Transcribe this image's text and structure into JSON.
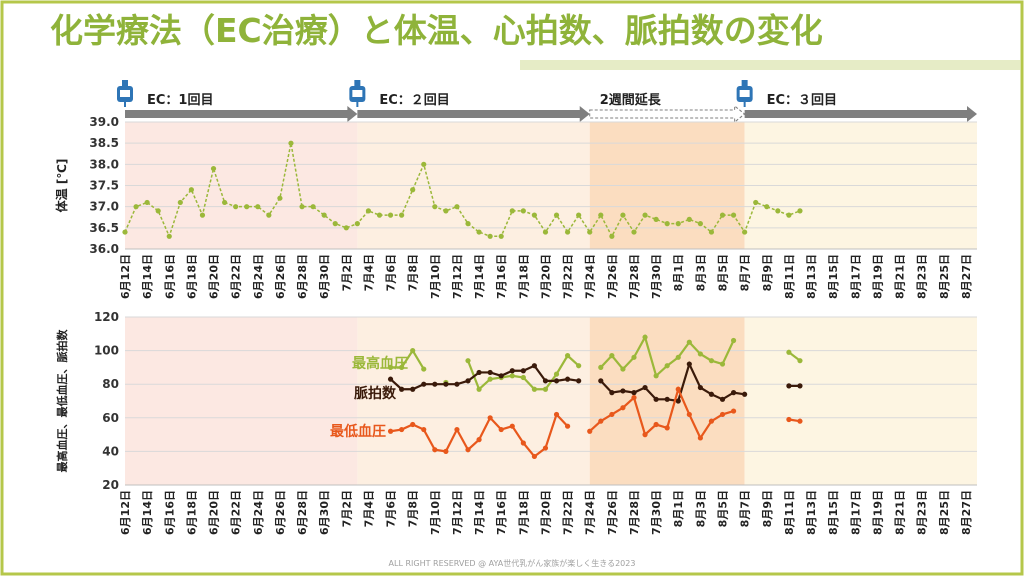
{
  "title": "化学療法（EC治療）と体温、心拍数、脈拍数の変化",
  "footer": "ALL RIGHT RESERVED @ AYA世代乳がん家族が楽しく生きる2023",
  "colors": {
    "title": "#8fb33a",
    "frame": "#b5c74a",
    "temp": "#9bb83a",
    "systolic": "#9bb83a",
    "pulse": "#3a1a0a",
    "diastolic": "#e8581c",
    "arrow": "#7f7f7f",
    "phase1_bg": "#fce8e2",
    "phase2_bg": "#fdefe1",
    "ext_bg": "#fbddc0",
    "phase3_bg": "#fdf5e2",
    "grid": "#d9d9d9",
    "drip_icon": "#2e75b6"
  },
  "phases": [
    {
      "label": "EC：1回目",
      "start": "6月12日",
      "end": "7月3日",
      "style": "solid",
      "icon": "iv-drip-icon"
    },
    {
      "label": "EC：２回目",
      "start": "7月3日",
      "end": "7月24日",
      "style": "solid",
      "icon": "iv-drip-icon"
    },
    {
      "label": "2週間延長",
      "start": "7月24日",
      "end": "8月7日",
      "style": "dashed",
      "icon": ""
    },
    {
      "label": "EC：３回目",
      "start": "8月7日",
      "end": "8月28日",
      "style": "solid",
      "icon": "iv-drip-icon"
    }
  ],
  "chart_data": [
    {
      "type": "line",
      "title": "",
      "ylabel": "体温 [℃]",
      "xlabel": "",
      "ylim": [
        36.0,
        39.0
      ],
      "yticks": [
        "36.0",
        "36.5",
        "37.0",
        "37.5",
        "38.0",
        "38.5",
        "39.0"
      ],
      "grid": true,
      "line_style": "dashed",
      "x_start": "6月12日",
      "x_end": "8月28日",
      "x_ticks": [
        "6月12日",
        "6月14日",
        "6月16日",
        "6月18日",
        "6月20日",
        "6月22日",
        "6月24日",
        "6月26日",
        "6月28日",
        "6月30日",
        "7月2日",
        "7月4日",
        "7月6日",
        "7月8日",
        "7月10日",
        "7月12日",
        "7月14日",
        "7月16日",
        "7月18日",
        "7月20日",
        "7月22日",
        "7月24日",
        "7月26日",
        "7月28日",
        "7月30日",
        "8月1日",
        "8月3日",
        "8月5日",
        "8月7日",
        "8月9日",
        "8月11日",
        "8月13日",
        "8月15日",
        "8月17日",
        "8月19日",
        "8月21日",
        "8月23日",
        "8月25日",
        "8月27日"
      ],
      "series": [
        {
          "key": "temp",
          "x": [
            "6月12日",
            "6月13日",
            "6月14日",
            "6月15日",
            "6月16日",
            "6月17日",
            "6月18日",
            "6月19日",
            "6月20日",
            "6月21日",
            "6月22日",
            "6月23日",
            "6月24日",
            "6月25日",
            "6月26日",
            "6月27日",
            "6月28日",
            "6月29日",
            "6月30日",
            "7月1日",
            "7月2日",
            "7月3日",
            "7月4日",
            "7月5日",
            "7月6日",
            "7月7日",
            "7月8日",
            "7月9日",
            "7月10日",
            "7月11日",
            "7月12日",
            "7月13日",
            "7月14日",
            "7月15日",
            "7月16日",
            "7月17日",
            "7月18日",
            "7月19日",
            "7月20日",
            "7月21日",
            "7月22日",
            "7月23日",
            "7月24日",
            "7月25日",
            "7月26日",
            "7月27日",
            "7月28日",
            "7月29日",
            "7月30日",
            "7月31日",
            "8月1日",
            "8月2日",
            "8月3日",
            "8月4日",
            "8月5日",
            "8月6日",
            "8月7日",
            "8月8日",
            "8月9日",
            "8月10日",
            "8月11日",
            "8月12日"
          ],
          "values": [
            36.4,
            37.0,
            37.1,
            36.9,
            36.3,
            37.1,
            37.4,
            36.8,
            37.9,
            37.1,
            37.0,
            37.0,
            37.0,
            36.8,
            37.2,
            38.5,
            37.0,
            37.0,
            36.8,
            36.6,
            36.5,
            36.6,
            36.9,
            36.8,
            36.8,
            36.8,
            37.4,
            38.0,
            37.0,
            36.9,
            37.0,
            36.6,
            36.4,
            36.3,
            36.3,
            36.9,
            36.9,
            36.8,
            36.4,
            36.8,
            36.4,
            36.8,
            36.4,
            36.8,
            36.3,
            36.8,
            36.4,
            36.8,
            36.7,
            36.6,
            36.6,
            36.7,
            36.6,
            36.4,
            36.8,
            36.8,
            36.4,
            37.1,
            37.0,
            36.9,
            36.8,
            36.9
          ]
        }
      ]
    },
    {
      "type": "line",
      "title": "",
      "ylabel": "最高血圧、最低血圧、脈拍数",
      "xlabel": "",
      "ylim": [
        20,
        120
      ],
      "yticks": [
        "20",
        "40",
        "60",
        "80",
        "100",
        "120"
      ],
      "grid": true,
      "x_start": "6月12日",
      "x_end": "8月28日",
      "series": [
        {
          "key": "systolic",
          "name": "最高血圧",
          "x": [
            "7月6日",
            "7月7日",
            "7月8日",
            "7月9日",
            "7月10日",
            "7月11日",
            "7月12日",
            "7月13日",
            "7月14日",
            "7月15日",
            "7月16日",
            "7月17日",
            "7月18日",
            "7月19日",
            "7月20日",
            "7月21日",
            "7月22日",
            "7月23日",
            "7月24日",
            "7月25日",
            "7月26日",
            "7月27日",
            "7月28日",
            "7月29日",
            "7月30日",
            "7月31日",
            "8月1日",
            "8月2日",
            "8月3日",
            "8月4日",
            "8月5日",
            "8月6日",
            "8月11日",
            "8月12日"
          ],
          "values": [
            90,
            90,
            100,
            89,
            null,
            81,
            null,
            94,
            77,
            83,
            84,
            85,
            84,
            77,
            77,
            86,
            97,
            91,
            null,
            90,
            97,
            89,
            96,
            108,
            85,
            91,
            96,
            105,
            98,
            94,
            92,
            106,
            99,
            94
          ]
        },
        {
          "key": "pulse",
          "name": "脈拍数",
          "x": [
            "7月6日",
            "7月7日",
            "7月8日",
            "7月9日",
            "7月10日",
            "7月11日",
            "7月12日",
            "7月13日",
            "7月14日",
            "7月15日",
            "7月16日",
            "7月17日",
            "7月18日",
            "7月19日",
            "7月20日",
            "7月21日",
            "7月22日",
            "7月23日",
            "7月24日",
            "7月25日",
            "7月26日",
            "7月27日",
            "7月28日",
            "7月29日",
            "7月30日",
            "7月31日",
            "8月1日",
            "8月2日",
            "8月3日",
            "8月4日",
            "8月5日",
            "8月6日",
            "8月7日",
            "8月11日",
            "8月12日"
          ],
          "values": [
            83,
            77,
            77,
            80,
            80,
            80,
            80,
            82,
            87,
            87,
            85,
            88,
            88,
            91,
            82,
            82,
            83,
            82,
            null,
            82,
            75,
            76,
            75,
            78,
            71,
            71,
            70,
            92,
            78,
            74,
            71,
            75,
            74,
            79,
            79
          ]
        },
        {
          "key": "diastolic",
          "name": "最低血圧",
          "x": [
            "7月6日",
            "7月7日",
            "7月8日",
            "7月9日",
            "7月10日",
            "7月11日",
            "7月12日",
            "7月13日",
            "7月14日",
            "7月15日",
            "7月16日",
            "7月17日",
            "7月18日",
            "7月19日",
            "7月20日",
            "7月21日",
            "7月22日",
            "7月23日",
            "7月24日",
            "7月25日",
            "7月26日",
            "7月27日",
            "7月28日",
            "7月29日",
            "7月30日",
            "7月31日",
            "8月1日",
            "8月2日",
            "8月3日",
            "8月4日",
            "8月5日",
            "8月6日",
            "8月7日",
            "8月11日",
            "8月12日"
          ],
          "values": [
            52,
            53,
            56,
            53,
            41,
            40,
            53,
            41,
            47,
            60,
            53,
            55,
            45,
            37,
            42,
            62,
            55,
            null,
            52,
            58,
            62,
            66,
            72,
            50,
            56,
            54,
            77,
            62,
            48,
            58,
            62,
            64,
            null,
            59,
            58
          ]
        }
      ]
    }
  ]
}
